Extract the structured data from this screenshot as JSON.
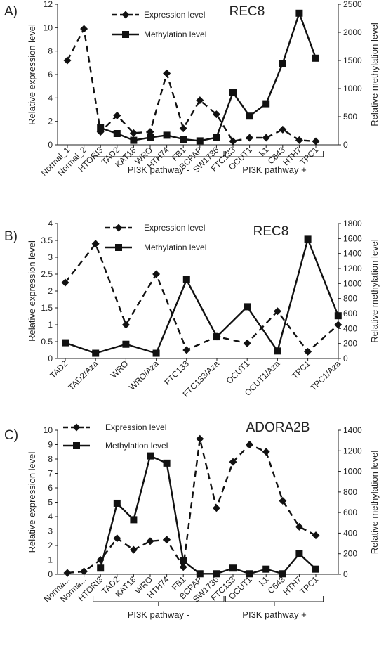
{
  "chart_data": [
    {
      "type": "line",
      "panel_label": "A)",
      "title": "REC8",
      "categories": [
        "Normal_1",
        "Normal_2",
        "HTORI3",
        "TAD2",
        "KAT18",
        "WRO",
        "HTH74",
        "FB1",
        "BCPAP",
        "SW1736",
        "FTC133",
        "OCUT1",
        "k1",
        "C643",
        "HTH7",
        "TPC1"
      ],
      "ylabel_left": "Relative expression level",
      "ylabel_right": "Relative methylation level",
      "ylim_left": [
        0,
        12
      ],
      "yticks_left": [
        "0",
        "2",
        "4",
        "6",
        "8",
        "10",
        "12"
      ],
      "ylim_right": [
        0,
        2500
      ],
      "yticks_right": [
        "0",
        "500",
        "1000",
        "1500",
        "2000",
        "2500"
      ],
      "series": [
        {
          "name": "Expression level",
          "axis": "left",
          "style": "dashed",
          "marker": "diamond",
          "values": [
            7.2,
            9.9,
            1.1,
            2.5,
            1.0,
            1.1,
            6.1,
            1.4,
            3.8,
            2.6,
            0.3,
            0.6,
            0.6,
            1.3,
            0.4,
            0.3
          ]
        },
        {
          "name": "Methylation level",
          "axis": "right",
          "style": "solid",
          "marker": "square",
          "values": [
            null,
            null,
            300,
            200,
            80,
            130,
            170,
            100,
            70,
            130,
            930,
            510,
            730,
            1450,
            2340,
            1540
          ]
        }
      ],
      "groups": [
        {
          "label": "PI3K pathway  -",
          "from": 2,
          "to": 9
        },
        {
          "label": "PI3K pathway  +",
          "from": 10,
          "to": 15
        }
      ]
    },
    {
      "type": "line",
      "panel_label": "B)",
      "title": "REC8",
      "categories": [
        "TAD2",
        "TAD2/Aza",
        "WRO",
        "WRO/Aza",
        "FTC133",
        "FTC133/Aza",
        "OCUT1",
        "OCUT1/Aza",
        "TPC1",
        "TPC1/Aza"
      ],
      "ylabel_left": "Relative expression level",
      "ylabel_right": "Relative methylation level",
      "ylim_left": [
        0,
        4
      ],
      "yticks_left": [
        "0",
        "0.5",
        "1",
        "1.5",
        "2",
        "2.5",
        "3",
        "3.5",
        "4"
      ],
      "ylim_right": [
        0,
        1800
      ],
      "yticks_right": [
        "0",
        "200",
        "400",
        "600",
        "800",
        "1000",
        "1200",
        "1400",
        "1600",
        "1800"
      ],
      "series": [
        {
          "name": "Expression level",
          "axis": "left",
          "style": "dashed",
          "marker": "diamond",
          "values": [
            2.25,
            3.4,
            1.0,
            2.5,
            0.25,
            0.65,
            0.45,
            1.4,
            0.2,
            1.0
          ]
        },
        {
          "name": "Methylation level",
          "axis": "right",
          "style": "solid",
          "marker": "square",
          "values": [
            210,
            70,
            190,
            70,
            1050,
            290,
            690,
            100,
            1590,
            570
          ]
        }
      ]
    },
    {
      "type": "line",
      "panel_label": "C)",
      "title": "ADORA2B",
      "categories": [
        "Norma...",
        "Norma...",
        "HTORI3",
        "TAD2",
        "KAT18",
        "WRO",
        "HTH74",
        "FB1",
        "BCPAP",
        "SW1736",
        "FTC133",
        "OCUT1",
        "k1",
        "C643",
        "HTH7",
        "TPC1"
      ],
      "ylabel_left": "Relative expression level",
      "ylabel_right": "Relative methylation level",
      "ylim_left": [
        0,
        10
      ],
      "yticks_left": [
        "0",
        "1",
        "2",
        "3",
        "4",
        "5",
        "6",
        "7",
        "8",
        "9",
        "10"
      ],
      "ylim_right": [
        0,
        1400
      ],
      "yticks_right": [
        "0",
        "200",
        "400",
        "600",
        "800",
        "1000",
        "1200",
        "1400"
      ],
      "series": [
        {
          "name": "Expression level",
          "axis": "left",
          "style": "dashed",
          "marker": "diamond",
          "values": [
            0.1,
            0.2,
            1.0,
            2.5,
            1.7,
            2.3,
            2.4,
            0.5,
            9.4,
            4.6,
            7.8,
            9.0,
            8.5,
            5.1,
            3.3,
            2.7
          ]
        },
        {
          "name": "Methylation level",
          "axis": "right",
          "style": "solid",
          "marker": "square",
          "values": [
            null,
            null,
            60,
            690,
            530,
            1150,
            1080,
            130,
            5,
            5,
            60,
            5,
            50,
            5,
            200,
            50
          ]
        }
      ],
      "groups": [
        {
          "label": "PI3K pathway  -",
          "from": 2,
          "to": 9
        },
        {
          "label": "PI3K pathway  +",
          "from": 10,
          "to": 15
        }
      ]
    }
  ]
}
